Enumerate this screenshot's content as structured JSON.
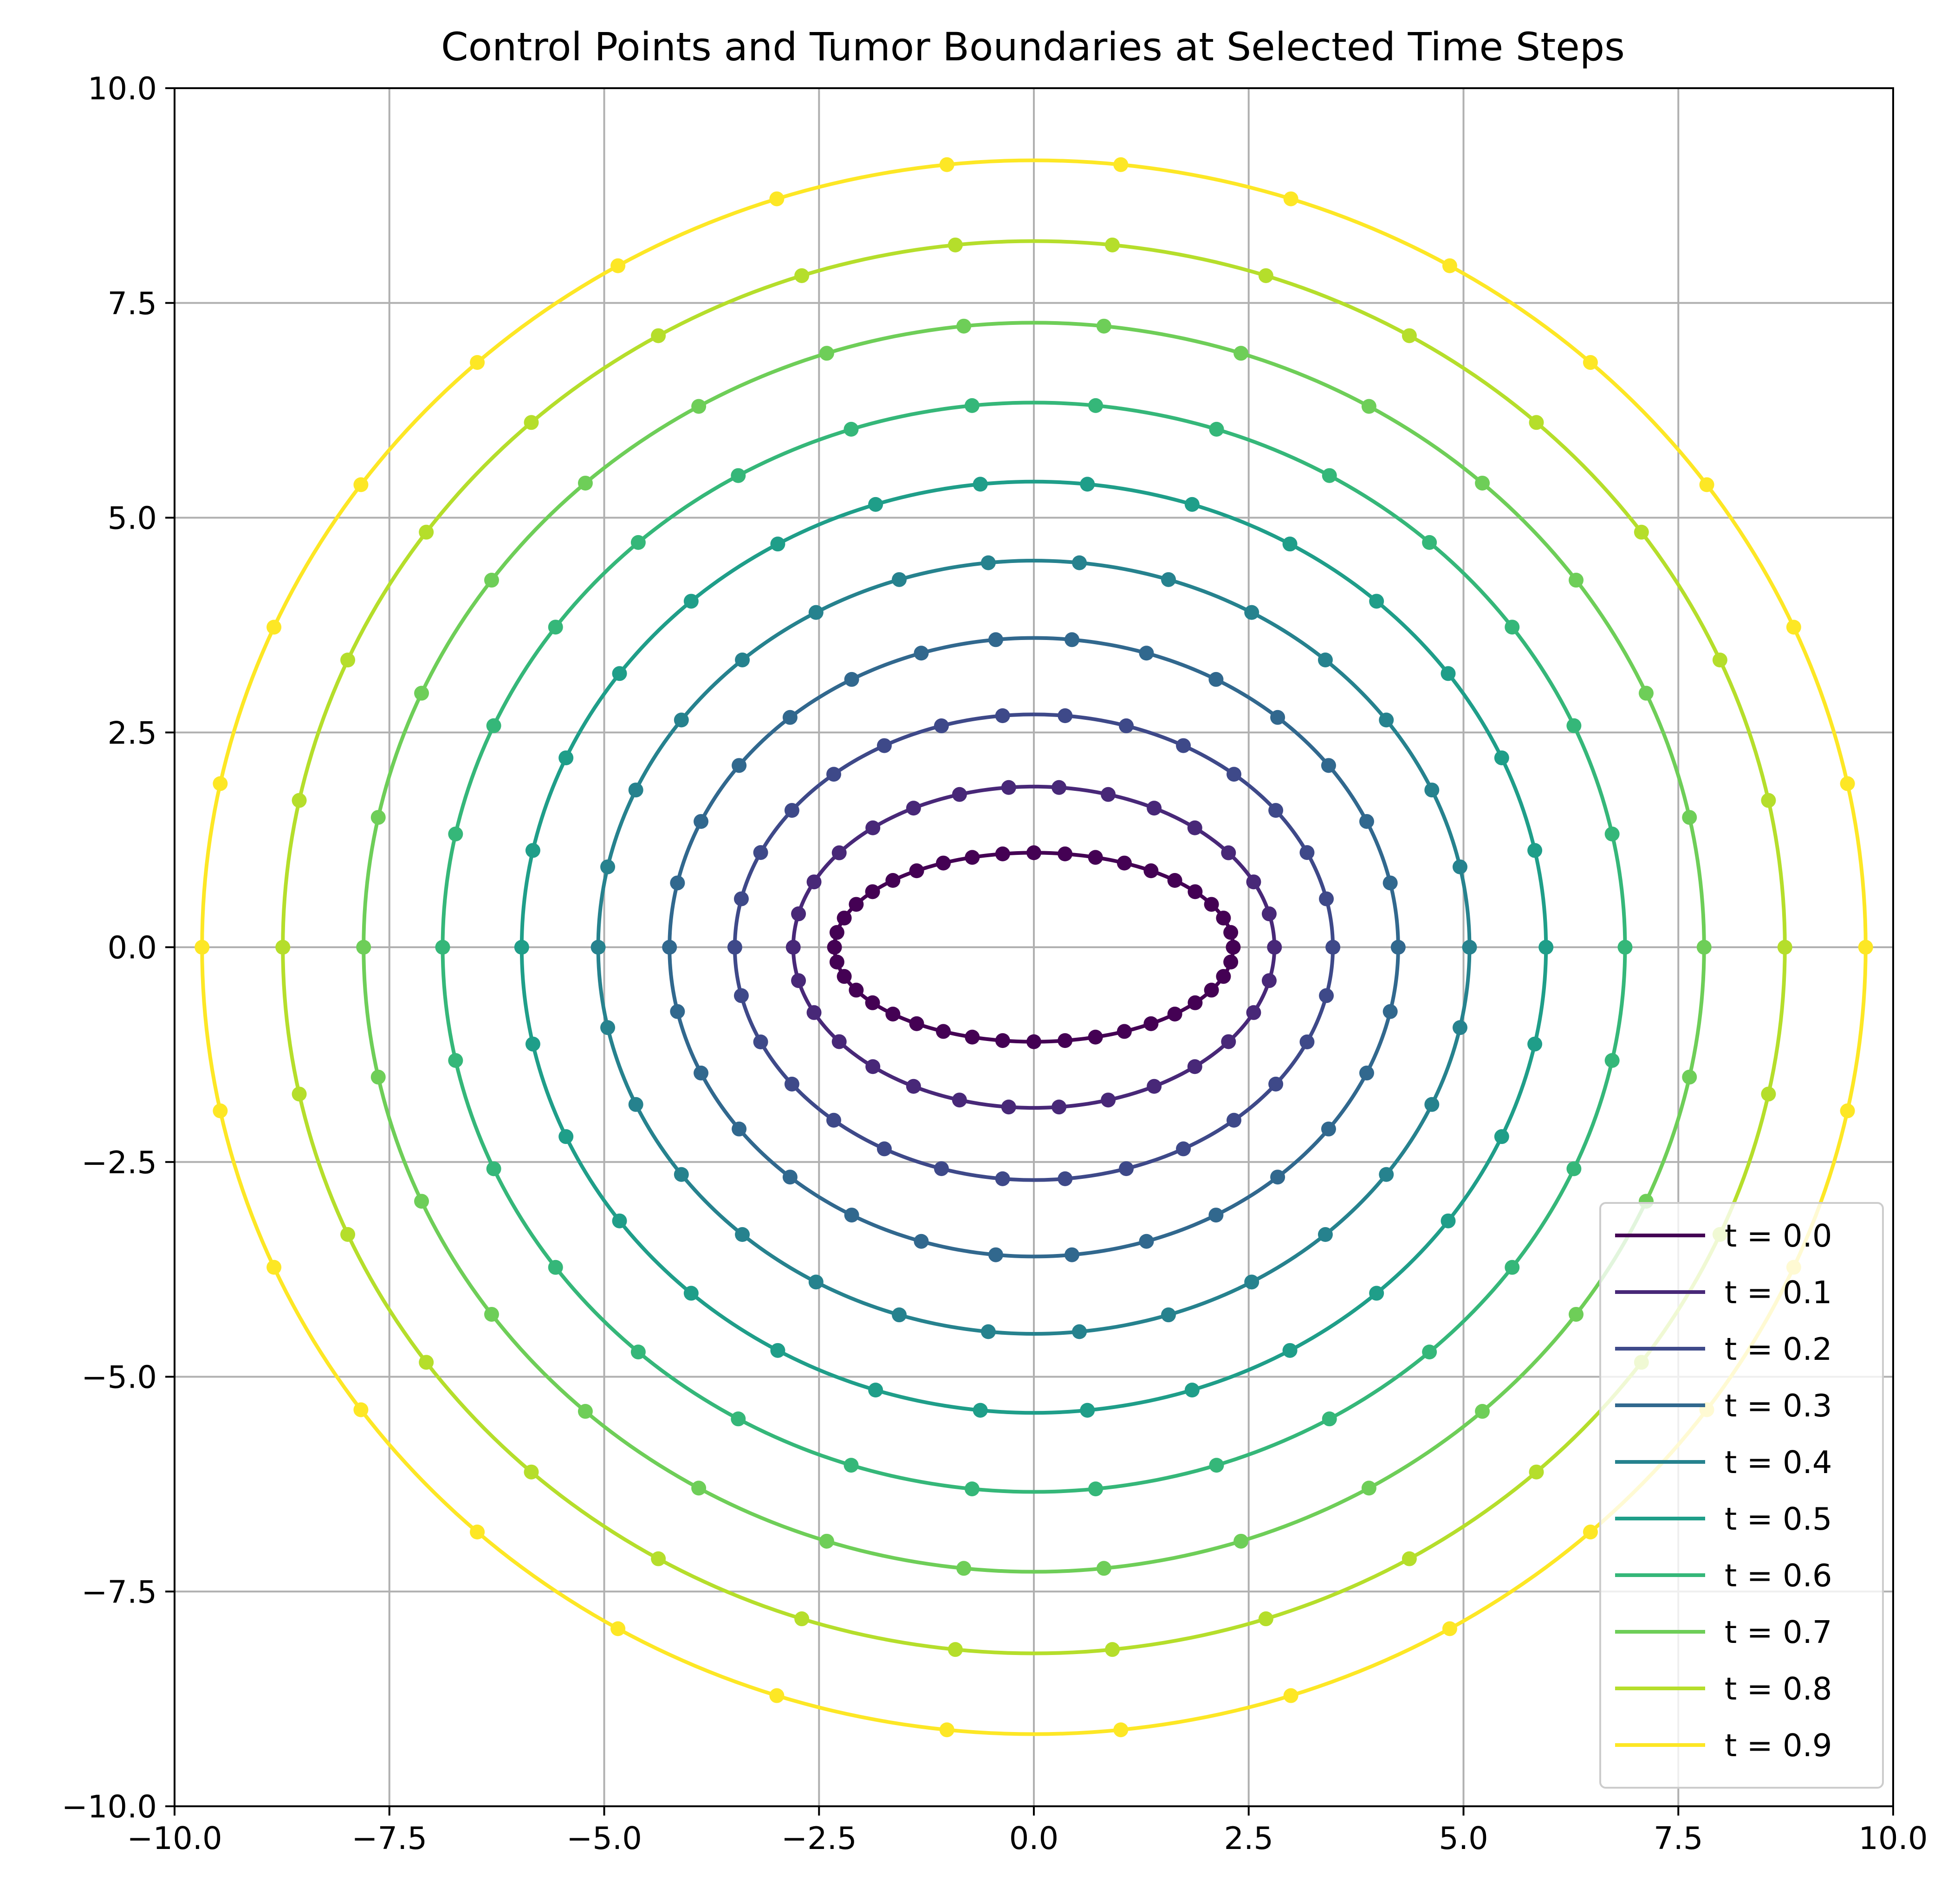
{
  "chart_data": {
    "type": "line",
    "title": "Control Points and Tumor Boundaries at Selected Time Steps",
    "xlabel": "",
    "ylabel": "",
    "xlim": [
      -10,
      10
    ],
    "ylim": [
      -10,
      10
    ],
    "grid": true,
    "legend_position": "lower-right",
    "aspect": "equal",
    "x_tick_labels": [
      "−10.0",
      "−7.5",
      "−5.0",
      "−2.5",
      "0.0",
      "2.5",
      "5.0",
      "7.5",
      "10.0"
    ],
    "y_tick_labels": [
      "−10.0",
      "−7.5",
      "−5.0",
      "−2.5",
      "0.0",
      "2.5",
      "5.0",
      "7.5",
      "10.0"
    ],
    "tick_values": [
      -10,
      -7.5,
      -5,
      -2.5,
      0,
      2.5,
      5,
      7.5,
      10
    ],
    "shape": "ellipse centered at origin; values are semi-axes in data units",
    "series": [
      {
        "label": "t = 0.0",
        "color": "#440154",
        "semi_axis_x": 2.32,
        "semi_axis_y": 1.1,
        "control_points": 40
      },
      {
        "label": "t = 0.1",
        "color": "#482878",
        "semi_axis_x": 2.8,
        "semi_axis_y": 1.87,
        "control_points": 30
      },
      {
        "label": "t = 0.2",
        "color": "#3e4989",
        "semi_axis_x": 3.48,
        "semi_axis_y": 2.71,
        "control_points": 30
      },
      {
        "label": "t = 0.3",
        "color": "#31688e",
        "semi_axis_x": 4.24,
        "semi_axis_y": 3.6,
        "control_points": 30
      },
      {
        "label": "t = 0.4",
        "color": "#26828e",
        "semi_axis_x": 5.07,
        "semi_axis_y": 4.5,
        "control_points": 30
      },
      {
        "label": "t = 0.5",
        "color": "#1f9e89",
        "semi_axis_x": 5.96,
        "semi_axis_y": 5.42,
        "control_points": 30
      },
      {
        "label": "t = 0.6",
        "color": "#35b779",
        "semi_axis_x": 6.88,
        "semi_axis_y": 6.34,
        "control_points": 30
      },
      {
        "label": "t = 0.7",
        "color": "#6ece58",
        "semi_axis_x": 7.8,
        "semi_axis_y": 7.27,
        "control_points": 30
      },
      {
        "label": "t = 0.8",
        "color": "#b5de2b",
        "semi_axis_x": 8.74,
        "semi_axis_y": 8.22,
        "control_points": 30
      },
      {
        "label": "t = 0.9",
        "color": "#fde725",
        "semi_axis_x": 9.68,
        "semi_axis_y": 9.16,
        "control_points": 30
      }
    ]
  }
}
